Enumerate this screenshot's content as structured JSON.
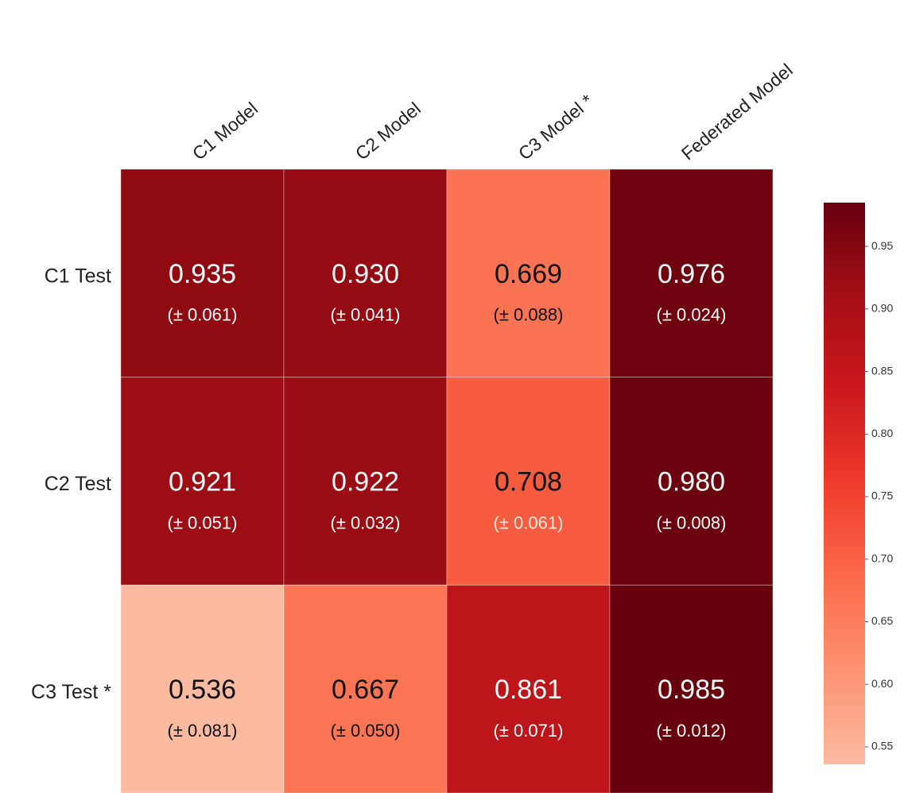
{
  "chart_data": {
    "type": "heatmap",
    "columns": [
      "C1 Model",
      "C2 Model",
      "C3 Model *",
      "Federated Model"
    ],
    "rows": [
      "C1 Test",
      "C2 Test",
      "C3 Test *"
    ],
    "values": [
      [
        0.935,
        0.93,
        0.669,
        0.976
      ],
      [
        0.921,
        0.922,
        0.708,
        0.98
      ],
      [
        0.536,
        0.667,
        0.861,
        0.985
      ]
    ],
    "value_labels": [
      [
        "0.935",
        "0.930",
        "0.669",
        "0.976"
      ],
      [
        "0.921",
        "0.922",
        "0.708",
        "0.980"
      ],
      [
        "0.536",
        "0.667",
        "0.861",
        "0.985"
      ]
    ],
    "errors": [
      [
        0.061,
        0.041,
        0.088,
        0.024
      ],
      [
        0.051,
        0.032,
        0.061,
        0.008
      ],
      [
        0.081,
        0.05,
        0.071,
        0.012
      ]
    ],
    "error_labels": [
      [
        "(± 0.061)",
        "(± 0.041)",
        "(± 0.088)",
        "(± 0.024)"
      ],
      [
        "(± 0.051)",
        "(± 0.032)",
        "(± 0.061)",
        "(± 0.008)"
      ],
      [
        "(± 0.081)",
        "(± 0.050)",
        "(± 0.071)",
        "(± 0.012)"
      ]
    ],
    "clim": [
      0.536,
      0.985
    ],
    "cticks": [
      0.55,
      {
        "value": 0.6,
        "label": "0.60"
      },
      0.65,
      {
        "value": 0.7,
        "label": "0.70"
      },
      0.75,
      {
        "value": 0.8,
        "label": "0.80"
      },
      0.85,
      {
        "value": 0.9,
        "label": "0.90"
      },
      0.95
    ],
    "colors": [
      "#fcbba1",
      "#fc9272",
      "#fb6a4a",
      "#ef3b2c",
      "#cb181d",
      "#a50f15",
      "#67000d"
    ]
  }
}
